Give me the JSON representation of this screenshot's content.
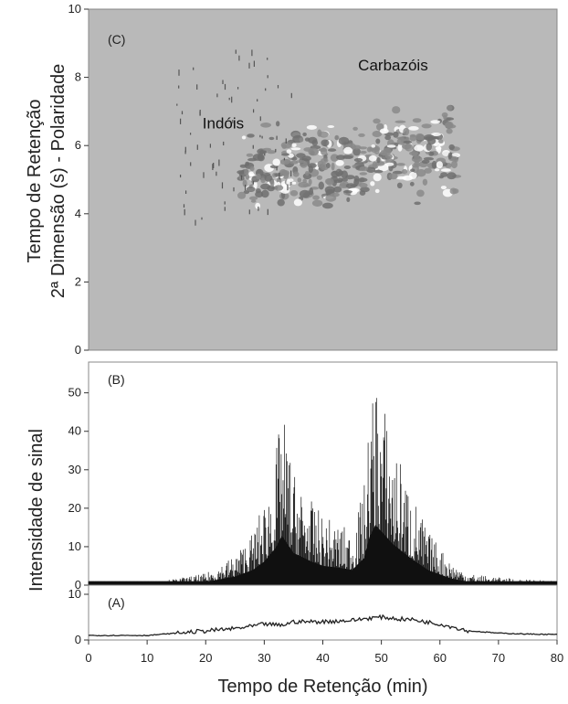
{
  "chart_data": [
    {
      "panel": "C",
      "type": "heatmap",
      "label": "(C)",
      "ylabel_line1": "Tempo de Retenção",
      "ylabel_line2": "2ª Dimensão (s) - Polaridade",
      "xlim": [
        0,
        80
      ],
      "ylim": [
        0,
        10
      ],
      "yticks": [
        "0",
        "2",
        "4",
        "6",
        "8",
        "10"
      ],
      "background_color": "#b9b9b9",
      "annotations": [
        {
          "text": "Indóis",
          "x": 23,
          "y": 6.5
        },
        {
          "text": "Carbazóis",
          "x": 52,
          "y": 8.2
        }
      ],
      "clusters": [
        {
          "name": "main",
          "x_range": [
            26,
            63
          ],
          "y_range": [
            4.2,
            7.4
          ],
          "peak_x": 50,
          "peak_y": 5.6
        },
        {
          "name": "scatter",
          "x_range": [
            15,
            35
          ],
          "y_range": [
            3.8,
            9.0
          ]
        }
      ]
    },
    {
      "panel": "B",
      "type": "line",
      "label": "(B)",
      "ylabel": "Intensidade de sinal",
      "xlim": [
        0,
        80
      ],
      "ylim": [
        0,
        58
      ],
      "yticks": [
        "0",
        "10",
        "20",
        "30",
        "40",
        "50"
      ],
      "baseline": 1,
      "envelope": {
        "x": [
          0,
          12,
          20,
          25,
          28,
          30,
          32,
          33,
          35,
          38,
          40,
          43,
          45,
          47,
          48,
          49,
          50,
          52,
          55,
          58,
          60,
          62,
          65,
          70,
          80
        ],
        "y": [
          1,
          1,
          3,
          8,
          14,
          22,
          35,
          46,
          30,
          22,
          18,
          16,
          14,
          25,
          45,
          56,
          50,
          38,
          25,
          14,
          10,
          6,
          3,
          2,
          1
        ]
      }
    },
    {
      "panel": "A",
      "type": "line",
      "label": "(A)",
      "xlim": [
        0,
        80
      ],
      "ylim": [
        0,
        12
      ],
      "yticks": [
        "0",
        "10"
      ],
      "x": [
        0,
        10,
        15,
        20,
        25,
        28,
        30,
        33,
        35,
        40,
        45,
        48,
        50,
        53,
        55,
        60,
        65,
        70,
        75,
        80
      ],
      "y": [
        1,
        1,
        1.5,
        2,
        2.5,
        3,
        3.5,
        3.2,
        4,
        4,
        4.3,
        4.8,
        5,
        4.6,
        4.5,
        3.5,
        2,
        1.5,
        1.3,
        1.2
      ]
    }
  ],
  "xaxis": {
    "label": "Tempo de Retenção (min)",
    "ticks": [
      "0",
      "10",
      "20",
      "30",
      "40",
      "50",
      "60",
      "70",
      "80"
    ]
  }
}
